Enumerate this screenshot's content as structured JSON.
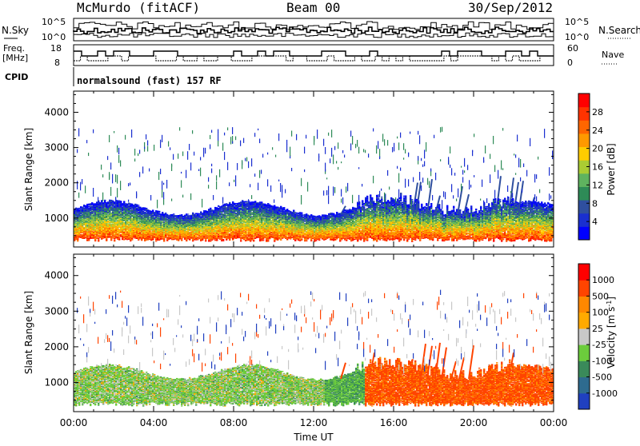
{
  "header": {
    "station": "McMurdo (fitACF)",
    "beam": "Beam 00",
    "date": "30/Sep/2012"
  },
  "status_panels": {
    "noise_left_label": "N.Sky",
    "noise_right_label": "N.Search",
    "noise_left_ticks": [
      "10^5",
      "10^0"
    ],
    "noise_right_ticks": [
      "10^5",
      "10^0"
    ],
    "freq_label_line1": "Freq.",
    "freq_label_line2": "[MHz]",
    "freq_left_ticks": [
      "18",
      "8"
    ],
    "nave_label": "Nave",
    "nave_right_ticks": [
      "60",
      "0"
    ],
    "cpid_label": "CPID",
    "cpid_text": "normalsound (fast) 157 RF"
  },
  "chart_data": [
    {
      "type": "heatmap",
      "name": "power",
      "ylabel": "Slant Range [km]",
      "yticks": [
        1000,
        2000,
        3000,
        4000
      ],
      "ylim": [
        180,
        4600
      ],
      "xticks": [
        "00:00",
        "04:00",
        "08:00",
        "12:00",
        "16:00",
        "20:00",
        "00:00"
      ],
      "xlim_hours": [
        0,
        24
      ],
      "colorbar": {
        "label": "Power [dB]",
        "ticks": [
          "28",
          "24",
          "20",
          "16",
          "12",
          "8",
          "4"
        ],
        "colors": [
          "#0000ff",
          "#1a2fd0",
          "#2f4f9f",
          "#2e8b57",
          "#5fb35f",
          "#aacc33",
          "#ffcc00",
          "#ff9900",
          "#ff6600",
          "#ff3300",
          "#ff0000"
        ]
      }
    },
    {
      "type": "heatmap",
      "name": "velocity",
      "ylabel": "Slant Range [km]",
      "yticks": [
        1000,
        2000,
        3000,
        4000
      ],
      "ylim": [
        180,
        4600
      ],
      "xticks": [
        "00:00",
        "04:00",
        "08:00",
        "12:00",
        "16:00",
        "20:00",
        "00:00"
      ],
      "xlabel": "Time UT",
      "colorbar": {
        "label": "Velocity [m s^-1]",
        "ticks": [
          "1000",
          "500",
          "100",
          "25",
          "-25",
          "-100",
          "-500",
          "-1000"
        ],
        "colors": [
          "#2040c0",
          "#2e6b8f",
          "#3a8a5a",
          "#6ccc3c",
          "#c8c8c8",
          "#ffaa00",
          "#ff8800",
          "#ff4400",
          "#ff0000"
        ]
      }
    }
  ]
}
